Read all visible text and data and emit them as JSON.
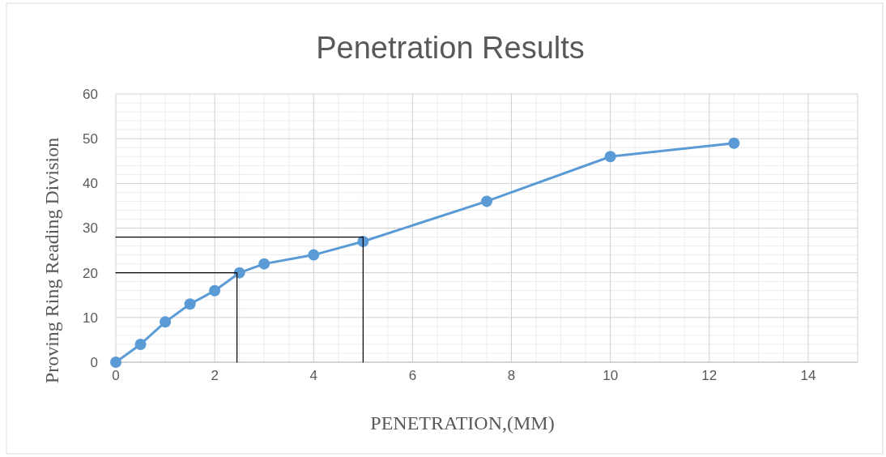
{
  "chart_data": {
    "type": "line",
    "title": "Penetration Results",
    "xlabel": "PENETRATION,(MM)",
    "ylabel": "Proving Ring Reading Division",
    "xlim": [
      0,
      15
    ],
    "xticks": [
      0,
      2,
      4,
      6,
      8,
      10,
      12,
      14
    ],
    "ylim": [
      0,
      60
    ],
    "yticks": [
      0,
      10,
      20,
      30,
      40,
      50,
      60
    ],
    "grid": true,
    "marker": "circle",
    "line_style": "solid",
    "series": [
      {
        "color": "#5b9bd5",
        "x": [
          0,
          0.5,
          1,
          1.5,
          2,
          2.5,
          3,
          4,
          5,
          7.5,
          10,
          12.5
        ],
        "values": [
          0,
          4,
          9,
          13,
          16,
          20,
          22,
          24,
          27,
          36,
          46,
          49
        ]
      },
      {
        "color": "#000000",
        "marker": "none",
        "x": [
          0,
          2.45,
          2.45
        ],
        "values": [
          20,
          20,
          0
        ]
      },
      {
        "color": "#000000",
        "marker": "none",
        "x": [
          0,
          5,
          5
        ],
        "values": [
          28,
          28,
          0
        ]
      }
    ]
  }
}
